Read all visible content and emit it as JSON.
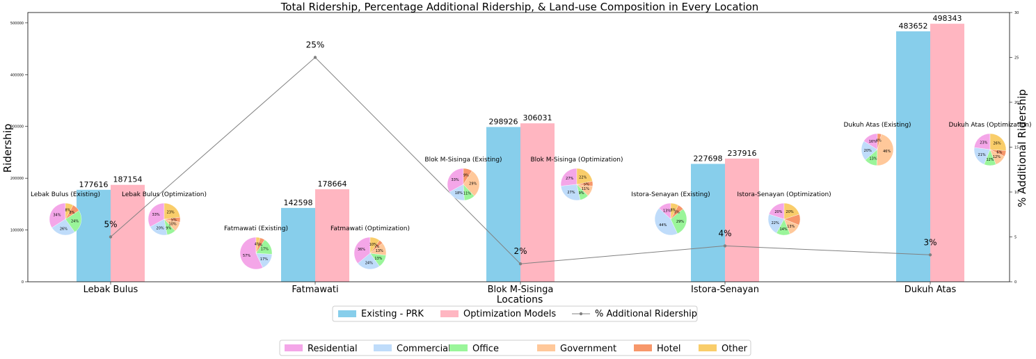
{
  "chart_data": {
    "type": "bar",
    "title": "Total Ridership, Percentage Additional Ridership, & Land-use Composition in Every Location",
    "xlabel": "Locations",
    "ylabel": "Ridership",
    "y2label": "% Additional Ridership",
    "ylim": [
      0,
      520000
    ],
    "y2lim": [
      0,
      30
    ],
    "yticks": [
      "0",
      "100000",
      "200000",
      "300000",
      "400000",
      "500000"
    ],
    "y2ticks": [
      "0",
      "5",
      "10",
      "15",
      "20",
      "25",
      "30"
    ],
    "categories": [
      "Lebak Bulus",
      "Fatmawati",
      "Blok M-Sisinga",
      "Istora-Senayan",
      "Dukuh Atas"
    ],
    "series": [
      {
        "name": "Existing - PRK",
        "values": [
          177616,
          142598,
          298926,
          227698,
          483652
        ],
        "color": "#87CEEB"
      },
      {
        "name": "Optimization Models",
        "values": [
          187154,
          178664,
          306031,
          237916,
          498343
        ],
        "color": "#FFB6C1"
      }
    ],
    "bar_labels": [
      [
        "177616",
        "142598",
        "298926",
        "227698",
        "483652"
      ],
      [
        "187154",
        "178664",
        "306031",
        "237916",
        "498343"
      ]
    ],
    "line": {
      "name": "% Additional Ridership",
      "values": [
        5,
        25,
        2,
        4,
        3
      ],
      "labels": [
        "5%",
        "25%",
        "2%",
        "4%",
        "3%"
      ],
      "color": "#808080"
    },
    "legend1": [
      {
        "label": "Existing - PRK",
        "kind": "patch",
        "color": "#87CEEB"
      },
      {
        "label": "Optimization Models",
        "kind": "patch",
        "color": "#FFB6C1"
      },
      {
        "label": "% Additional Ridership",
        "kind": "line",
        "color": "#808080"
      }
    ],
    "landuse": {
      "categories": [
        "Residential",
        "Commercial",
        "Office",
        "Government",
        "Hotel",
        "Other"
      ],
      "colors": [
        "#F4A6E8",
        "#BFDCFA",
        "#9AF59A",
        "#FFC89A",
        "#F7976A",
        "#F9CD6A"
      ]
    },
    "pies": [
      {
        "title": "Lebak Bulus (Existing)",
        "values": [
          34,
          26,
          24,
          0,
          8,
          8
        ],
        "labels": [
          "34%",
          "26%",
          "24%",
          "",
          "8%",
          "8%"
        ]
      },
      {
        "title": "Lebak Bulus (Optimization)",
        "values": [
          33,
          20,
          9,
          10,
          5,
          23
        ],
        "labels": [
          "33%",
          "20%",
          "9%",
          "10%",
          "5%",
          "23%"
        ]
      },
      {
        "title": "Fatmawati (Existing)",
        "values": [
          57,
          17,
          17,
          0,
          5,
          4
        ],
        "labels": [
          "57%",
          "17%",
          "17%",
          "",
          "5%",
          "4%"
        ]
      },
      {
        "title": "Fatmawati (Optimization)",
        "values": [
          36,
          24,
          13,
          13,
          4,
          10
        ],
        "labels": [
          "36%",
          "24%",
          "13%",
          "13%",
          "4%",
          "10%"
        ]
      },
      {
        "title": "Blok M-Sisinga (Existing)",
        "values": [
          33,
          18,
          11,
          29,
          9,
          0
        ],
        "labels": [
          "33%",
          "18%",
          "11%",
          "29%",
          "9%",
          ""
        ]
      },
      {
        "title": "Blok M-Sisinga (Optimization)",
        "values": [
          27,
          27,
          9,
          11,
          5,
          22
        ],
        "labels": [
          "27%",
          "27%",
          "9%",
          "11%",
          "5%",
          "22%"
        ]
      },
      {
        "title": "Istora-Senayan (Existing)",
        "values": [
          13,
          44,
          29,
          0,
          6,
          8
        ],
        "labels": [
          "13%",
          "44%",
          "29%",
          "",
          "6%",
          "8%"
        ]
      },
      {
        "title": "Istora-Senayan (Optimization)",
        "values": [
          20,
          22,
          14,
          13,
          11,
          20
        ],
        "labels": [
          "20%",
          "22%",
          "14%",
          "13%",
          "",
          "20%"
        ]
      },
      {
        "title": "Dukuh Atas (Existing)",
        "values": [
          16,
          20,
          13,
          46,
          4,
          0
        ],
        "labels": [
          "16%",
          "20%",
          "13%",
          "46%",
          "4%",
          ""
        ]
      },
      {
        "title": "Dukuh Atas (Optimization)",
        "values": [
          23,
          21,
          12,
          12,
          6,
          26
        ],
        "labels": [
          "23%",
          "21%",
          "12%",
          "12%",
          "6%",
          "26%"
        ]
      }
    ]
  }
}
